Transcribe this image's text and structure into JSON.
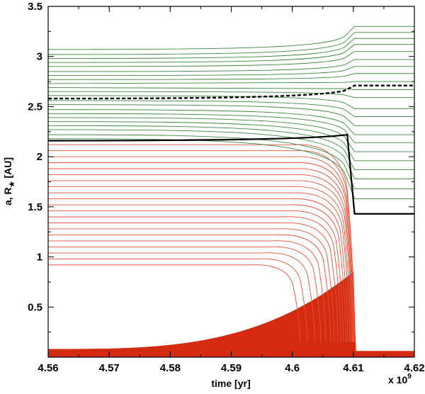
{
  "chart_data": {
    "type": "line",
    "title": "",
    "xlabel": "time [yr]",
    "ylabel": "a, R★ [AU]",
    "ylabel_parts": {
      "main": "a, R",
      "sub": "★",
      "unit": " [AU]"
    },
    "x_multiplier": {
      "base": "x 10",
      "exponent": "9"
    },
    "xlim": [
      4.56,
      4.62
    ],
    "ylim": [
      0,
      3.5
    ],
    "x_ticks": [
      4.56,
      4.57,
      4.58,
      4.59,
      4.6,
      4.61,
      4.62
    ],
    "x_tick_labels": [
      "4.56",
      "4.57",
      "4.58",
      "4.59",
      "4.6",
      "4.61",
      "4.62"
    ],
    "y_ticks": [
      0.5,
      1,
      1.5,
      2,
      2.5,
      3,
      3.5
    ],
    "y_tick_labels": [
      "0.5",
      "1",
      "1.5",
      "2",
      "2.5",
      "3",
      "3.5"
    ],
    "grid": false,
    "colors": {
      "survive": "#3a8a3a",
      "engulfed": "#e0533a",
      "radius_fill": "#d42a10",
      "critical": "#000000"
    },
    "transition_time": 4.6102,
    "series": [
      {
        "role": "stellar-radius",
        "kind": "band",
        "start_y": 0.08,
        "peak_y": 0.85,
        "peak_x": 4.61,
        "after_y": 0.06
      },
      {
        "role": "critical-solid",
        "style": "solid",
        "start_y": 2.16,
        "peak_y": 2.22,
        "end_y": 1.43
      },
      {
        "role": "critical-dashed",
        "style": "dashed",
        "start_y": 2.58,
        "end_y": 2.71
      },
      {
        "role": "surviving-orbits",
        "start_y": [
          2.18,
          2.22,
          2.27,
          2.31,
          2.35,
          2.39,
          2.43,
          2.47,
          2.52,
          2.56,
          2.61,
          2.65,
          2.69,
          2.73,
          2.77,
          2.81,
          2.85,
          2.9,
          2.94,
          2.98,
          3.02,
          3.07
        ],
        "end_y": [
          1.58,
          1.68,
          1.78,
          1.87,
          1.96,
          2.05,
          2.14,
          2.22,
          2.31,
          2.4,
          2.48,
          2.59,
          2.67,
          2.75,
          2.83,
          2.9,
          2.97,
          3.05,
          3.12,
          3.18,
          3.24,
          3.3
        ]
      },
      {
        "role": "engulfed-orbits",
        "start_y": [
          0.92,
          0.98,
          1.04,
          1.1,
          1.16,
          1.22,
          1.28,
          1.34,
          1.4,
          1.46,
          1.52,
          1.58,
          1.64,
          1.7,
          1.76,
          1.82,
          1.88,
          1.94,
          2.0,
          2.06,
          2.12
        ],
        "end_x": [
          4.6013,
          4.6025,
          4.6037,
          4.6047,
          4.6055,
          4.6063,
          4.6069,
          4.6075,
          4.608,
          4.6084,
          4.6088,
          4.6091,
          4.6094,
          4.6096,
          4.6098,
          4.6099,
          4.61,
          4.6101,
          4.6101,
          4.6102,
          4.6102
        ]
      }
    ]
  }
}
